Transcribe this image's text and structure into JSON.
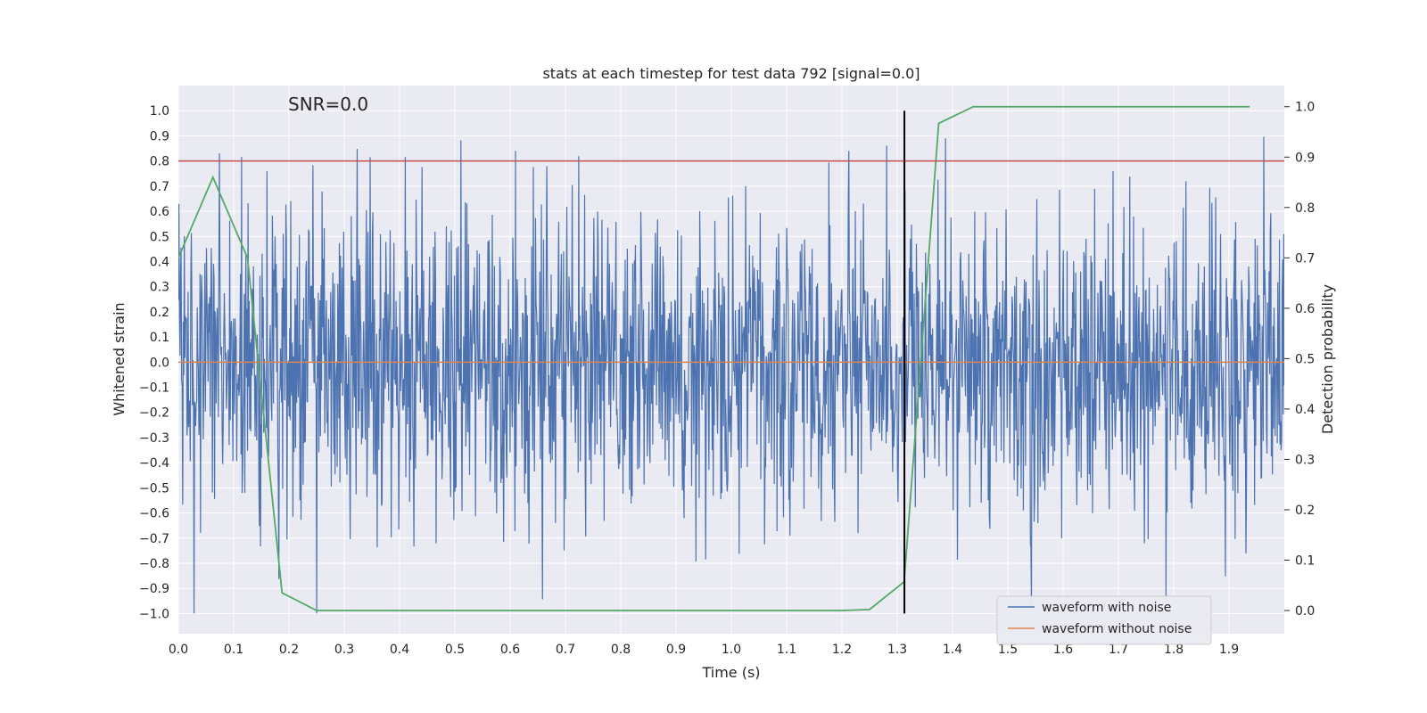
{
  "chart_data": {
    "type": "line",
    "title": "stats at each timestep for test data 792 [signal=0.0]",
    "xlabel": "Time (s)",
    "ylabel": "Whitened strain",
    "y2label": "Detection probability",
    "annotation": "SNR=0.0",
    "xlim": [
      0.0,
      2.0
    ],
    "ylim": [
      -1.08,
      1.1
    ],
    "y2lim": [
      -0.046,
      1.042
    ],
    "x_ticks": [
      "0.0",
      "0.1",
      "0.2",
      "0.3",
      "0.4",
      "0.5",
      "0.6",
      "0.7",
      "0.8",
      "0.9",
      "1.0",
      "1.1",
      "1.2",
      "1.3",
      "1.4",
      "1.5",
      "1.6",
      "1.7",
      "1.8",
      "1.9"
    ],
    "y_ticks": [
      "1.0",
      "0.9",
      "0.8",
      "0.7",
      "0.6",
      "0.5",
      "0.4",
      "0.3",
      "0.2",
      "0.1",
      "0.0",
      "−0.1",
      "−0.2",
      "−0.3",
      "−0.4",
      "−0.5",
      "−0.6",
      "−0.7",
      "−0.8",
      "−0.9",
      "−1.0"
    ],
    "y2_ticks": [
      "1.0",
      "0.9",
      "0.8",
      "0.7",
      "0.6",
      "0.5",
      "0.4",
      "0.3",
      "0.2",
      "0.1",
      "0.0"
    ],
    "threshold_y": 0.8,
    "vertical_marker_x": 1.313,
    "vertical_marker_yrange": [
      -1.0,
      1.0
    ],
    "series": [
      {
        "name": "waveform with noise",
        "color": "#4c72b0",
        "kind": "noise",
        "num_points": 2048,
        "std": 0.3,
        "x_range": [
          0.0,
          2.0
        ],
        "seed": 792
      },
      {
        "name": "waveform without noise",
        "color": "#dd8452",
        "kind": "constant",
        "value": 0.0,
        "x_range": [
          0.0,
          2.0
        ]
      },
      {
        "name": "detection probability",
        "color": "#55a868",
        "axis": "right",
        "x": [
          0.0,
          0.0625,
          0.125,
          0.1875,
          0.25,
          0.3,
          0.5,
          0.7,
          0.9,
          1.1,
          1.2,
          1.25,
          1.3125,
          1.375,
          1.4375,
          1.5,
          1.6,
          1.7,
          1.8,
          1.9,
          1.9375
        ],
        "y": [
          0.7,
          0.86,
          0.7,
          0.035,
          0.0,
          0.0,
          0.0,
          0.0,
          0.0,
          0.0,
          0.0,
          0.002,
          0.057,
          0.967,
          1.0,
          1.0,
          1.0,
          1.0,
          1.0,
          1.0,
          1.0
        ]
      },
      {
        "name": "threshold",
        "color": "#c44e52",
        "kind": "hline",
        "value": 0.8
      },
      {
        "name": "event marker",
        "color": "#000000",
        "kind": "vline",
        "value": 1.313
      }
    ],
    "legend": {
      "position": "lower-right",
      "entries": [
        "waveform with noise",
        "waveform without noise"
      ]
    },
    "grid": true,
    "facecolor": "#eaeaf2",
    "gridcolor": "#ffffff"
  }
}
